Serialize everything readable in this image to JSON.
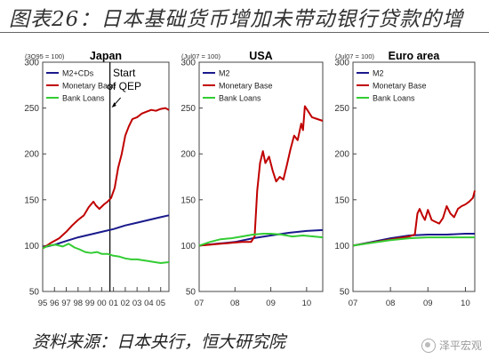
{
  "title": "图表26：日本基础货币增加未带动银行贷款的增",
  "source": "资料来源：日本央行，恒大研究院",
  "brand": "泽平宏观",
  "colors": {
    "m2": "#1a1a8c",
    "base": "#c00000",
    "loans": "#33cc33",
    "axis": "#444444",
    "title": "#333333"
  },
  "chart_data": [
    {
      "type": "line",
      "title": "Japan",
      "index_label": "(3Q95 = 100)",
      "annotation": "Start of QEP",
      "annotation_lines": [
        "Start",
        "of QEP"
      ],
      "event_x": 2001.2,
      "x_ticks": [
        {
          "x": 1995.5,
          "label": "95"
        },
        {
          "x": 1996.5,
          "label": "96"
        },
        {
          "x": 1997.5,
          "label": "97"
        },
        {
          "x": 1998.5,
          "label": "98"
        },
        {
          "x": 1999.5,
          "label": "99"
        },
        {
          "x": 2000.5,
          "label": "00"
        },
        {
          "x": 2001.5,
          "label": "01"
        },
        {
          "x": 2002.5,
          "label": "02"
        },
        {
          "x": 2003.5,
          "label": "03"
        },
        {
          "x": 2004.5,
          "label": "04"
        },
        {
          "x": 2005.5,
          "label": "05"
        }
      ],
      "xlim": [
        1995.5,
        2006.2
      ],
      "ylim": [
        50,
        300
      ],
      "y_ticks": [
        50,
        100,
        150,
        200,
        250,
        300
      ],
      "series": [
        {
          "name": "M2+CDs",
          "color_key": "m2",
          "points": [
            [
              1995.5,
              98
            ],
            [
              1996.5,
              101
            ],
            [
              1997.5,
              105
            ],
            [
              1998.5,
              109
            ],
            [
              1999.5,
              112
            ],
            [
              2000.5,
              115
            ],
            [
              2001.5,
              118
            ],
            [
              2002.5,
              122
            ],
            [
              2003.5,
              125
            ],
            [
              2004.5,
              128
            ],
            [
              2005.5,
              131
            ],
            [
              2006.2,
              133
            ]
          ]
        },
        {
          "name": "Monetary Base",
          "color_key": "base",
          "points": [
            [
              1995.5,
              97
            ],
            [
              1996.2,
              103
            ],
            [
              1996.9,
              108
            ],
            [
              1997.5,
              115
            ],
            [
              1998.0,
              122
            ],
            [
              1998.5,
              128
            ],
            [
              1999.0,
              133
            ],
            [
              1999.4,
              142
            ],
            [
              1999.8,
              148
            ],
            [
              2000.0,
              144
            ],
            [
              2000.3,
              140
            ],
            [
              2000.7,
              145
            ],
            [
              2001.0,
              148
            ],
            [
              2001.3,
              152
            ],
            [
              2001.6,
              163
            ],
            [
              2001.9,
              185
            ],
            [
              2002.2,
              200
            ],
            [
              2002.5,
              220
            ],
            [
              2002.8,
              230
            ],
            [
              2003.1,
              238
            ],
            [
              2003.5,
              240
            ],
            [
              2003.9,
              244
            ],
            [
              2004.3,
              246
            ],
            [
              2004.7,
              248
            ],
            [
              2005.1,
              247
            ],
            [
              2005.5,
              249
            ],
            [
              2005.9,
              250
            ],
            [
              2006.2,
              248
            ]
          ]
        },
        {
          "name": "Bank Loans",
          "color_key": "loans",
          "points": [
            [
              1995.5,
              97
            ],
            [
              1996.0,
              100
            ],
            [
              1996.6,
              101
            ],
            [
              1997.2,
              99
            ],
            [
              1997.7,
              102
            ],
            [
              1998.2,
              98
            ],
            [
              1998.6,
              96
            ],
            [
              1999.1,
              93
            ],
            [
              1999.6,
              92
            ],
            [
              2000.1,
              93
            ],
            [
              2000.5,
              91
            ],
            [
              2001.0,
              91
            ],
            [
              2001.5,
              89
            ],
            [
              2002.0,
              88
            ],
            [
              2002.5,
              86
            ],
            [
              2003.0,
              85
            ],
            [
              2003.5,
              85
            ],
            [
              2004.0,
              84
            ],
            [
              2004.5,
              83
            ],
            [
              2005.0,
              82
            ],
            [
              2005.5,
              81
            ],
            [
              2006.2,
              82
            ]
          ]
        }
      ]
    },
    {
      "type": "line",
      "title": "USA",
      "index_label": "(Jul07 = 100)",
      "x_ticks": [
        {
          "x": 2007.0,
          "label": "07"
        },
        {
          "x": 2008.0,
          "label": "08"
        },
        {
          "x": 2009.0,
          "label": "09"
        },
        {
          "x": 2010.0,
          "label": "10"
        }
      ],
      "xlim": [
        2007.0,
        2010.45
      ],
      "ylim": [
        50,
        300
      ],
      "y_ticks": [
        50,
        100,
        150,
        200,
        250,
        300
      ],
      "series": [
        {
          "name": "M2",
          "color_key": "m2",
          "points": [
            [
              2007.0,
              100
            ],
            [
              2007.5,
              102
            ],
            [
              2008.0,
              104
            ],
            [
              2008.5,
              108
            ],
            [
              2009.0,
              111
            ],
            [
              2009.5,
              114
            ],
            [
              2010.0,
              116
            ],
            [
              2010.45,
              117
            ]
          ]
        },
        {
          "name": "Monetary Base",
          "color_key": "base",
          "points": [
            [
              2007.0,
              100
            ],
            [
              2007.3,
              101
            ],
            [
              2007.6,
              102
            ],
            [
              2007.9,
              103
            ],
            [
              2008.2,
              104
            ],
            [
              2008.45,
              104
            ],
            [
              2008.55,
              110
            ],
            [
              2008.62,
              160
            ],
            [
              2008.7,
              190
            ],
            [
              2008.78,
              203
            ],
            [
              2008.85,
              190
            ],
            [
              2008.95,
              197
            ],
            [
              2009.05,
              182
            ],
            [
              2009.15,
              170
            ],
            [
              2009.25,
              175
            ],
            [
              2009.35,
              172
            ],
            [
              2009.45,
              188
            ],
            [
              2009.55,
              205
            ],
            [
              2009.65,
              220
            ],
            [
              2009.75,
              215
            ],
            [
              2009.85,
              233
            ],
            [
              2009.9,
              226
            ],
            [
              2009.95,
              252
            ],
            [
              2010.05,
              246
            ],
            [
              2010.15,
              240
            ],
            [
              2010.3,
              238
            ],
            [
              2010.45,
              236
            ]
          ]
        },
        {
          "name": "Bank Loans",
          "color_key": "loans",
          "points": [
            [
              2007.0,
              100
            ],
            [
              2007.3,
              104
            ],
            [
              2007.6,
              107
            ],
            [
              2007.9,
              108
            ],
            [
              2008.2,
              110
            ],
            [
              2008.5,
              112
            ],
            [
              2008.8,
              113
            ],
            [
              2009.0,
              113
            ],
            [
              2009.3,
              112
            ],
            [
              2009.6,
              110
            ],
            [
              2009.9,
              111
            ],
            [
              2010.2,
              110
            ],
            [
              2010.45,
              109
            ]
          ]
        }
      ]
    },
    {
      "type": "line",
      "title": "Euro area",
      "index_label": "(Jul07 = 100)",
      "x_ticks": [
        {
          "x": 2007.0,
          "label": "07"
        },
        {
          "x": 2008.0,
          "label": "08"
        },
        {
          "x": 2009.0,
          "label": "09"
        },
        {
          "x": 2010.0,
          "label": "10"
        }
      ],
      "xlim": [
        2007.0,
        2010.25
      ],
      "ylim": [
        50,
        300
      ],
      "y_ticks": [
        50,
        100,
        150,
        200,
        250,
        300
      ],
      "series": [
        {
          "name": "M2",
          "color_key": "m2",
          "points": [
            [
              2007.0,
              100
            ],
            [
              2007.5,
              104
            ],
            [
              2008.0,
              108
            ],
            [
              2008.5,
              111
            ],
            [
              2009.0,
              112
            ],
            [
              2009.5,
              112
            ],
            [
              2010.0,
              113
            ],
            [
              2010.25,
              113
            ]
          ]
        },
        {
          "name": "Monetary Base",
          "color_key": "base",
          "points": [
            [
              2007.0,
              100
            ],
            [
              2007.3,
              102
            ],
            [
              2007.6,
              104
            ],
            [
              2007.9,
              106
            ],
            [
              2008.2,
              108
            ],
            [
              2008.5,
              110
            ],
            [
              2008.65,
              112
            ],
            [
              2008.72,
              135
            ],
            [
              2008.78,
              140
            ],
            [
              2008.85,
              133
            ],
            [
              2008.92,
              128
            ],
            [
              2009.0,
              139
            ],
            [
              2009.1,
              128
            ],
            [
              2009.2,
              126
            ],
            [
              2009.3,
              124
            ],
            [
              2009.4,
              130
            ],
            [
              2009.5,
              143
            ],
            [
              2009.6,
              135
            ],
            [
              2009.7,
              131
            ],
            [
              2009.8,
              140
            ],
            [
              2009.9,
              143
            ],
            [
              2010.0,
              145
            ],
            [
              2010.1,
              148
            ],
            [
              2010.2,
              152
            ],
            [
              2010.25,
              160
            ]
          ]
        },
        {
          "name": "Bank Loans",
          "color_key": "loans",
          "points": [
            [
              2007.0,
              100
            ],
            [
              2007.5,
              103
            ],
            [
              2008.0,
              106
            ],
            [
              2008.5,
              108
            ],
            [
              2009.0,
              109
            ],
            [
              2009.5,
              109
            ],
            [
              2010.0,
              109
            ],
            [
              2010.25,
              109
            ]
          ]
        }
      ]
    }
  ]
}
